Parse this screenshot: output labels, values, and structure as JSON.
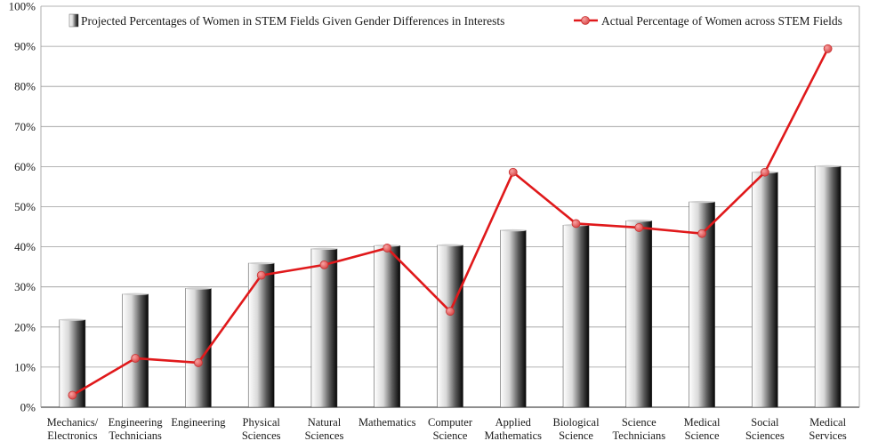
{
  "chart_data": {
    "type": "bar",
    "categories": [
      [
        "Mechanics/",
        "Electronics"
      ],
      [
        "Engineering",
        "Technicians"
      ],
      [
        "Engineering"
      ],
      [
        "Physical",
        "Sciences"
      ],
      [
        "Natural",
        "Sciences"
      ],
      [
        "Mathematics"
      ],
      [
        "Computer",
        "Science"
      ],
      [
        "Applied",
        "Mathematics"
      ],
      [
        "Biological",
        "Science"
      ],
      [
        "Science",
        "Technicians"
      ],
      [
        "Medical",
        "Science"
      ],
      [
        "Social",
        "Sciences"
      ],
      [
        "Medical",
        "Services"
      ]
    ],
    "series": [
      {
        "name": "Projected Percentages of Women in STEM Fields Given Gender Differences in Interests",
        "type": "bar",
        "values": [
          21.8,
          28.2,
          29.6,
          35.9,
          39.5,
          40.3,
          40.4,
          44.1,
          45.4,
          46.5,
          51.2,
          58.6,
          60.1
        ]
      },
      {
        "name": "Actual Percentage of Women across STEM Fields",
        "type": "line",
        "color": "#e0191b",
        "values": [
          3,
          12.2,
          11.1,
          32.9,
          35.5,
          39.7,
          23.9,
          58.6,
          45.8,
          44.8,
          43.3,
          58.6,
          89.4
        ]
      }
    ],
    "yticks": [
      "0%",
      "10%",
      "20%",
      "30%",
      "40%",
      "50%",
      "60%",
      "70%",
      "80%",
      "90%",
      "100%"
    ],
    "ylim": [
      0,
      100
    ],
    "grid": true,
    "legend": "top",
    "title": "",
    "xlabel": "",
    "ylabel": ""
  }
}
